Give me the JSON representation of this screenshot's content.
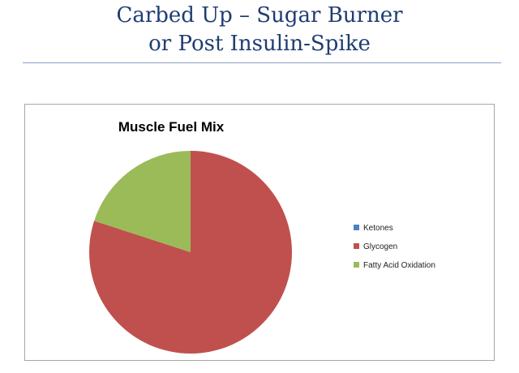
{
  "slide": {
    "title_line1": "Carbed Up – Sugar Burner",
    "title_line2": "or Post Insulin-Spike"
  },
  "chart_data": {
    "type": "pie",
    "title": "Muscle Fuel Mix",
    "legend_position": "right",
    "slices": [
      {
        "label": "Ketones",
        "value": 0,
        "color": "#4f81bd"
      },
      {
        "label": "Glycogen",
        "value": 80,
        "color": "#c0504d"
      },
      {
        "label": "Fatty Acid Oxidation",
        "value": 20,
        "color": "#9bbb59"
      }
    ]
  }
}
